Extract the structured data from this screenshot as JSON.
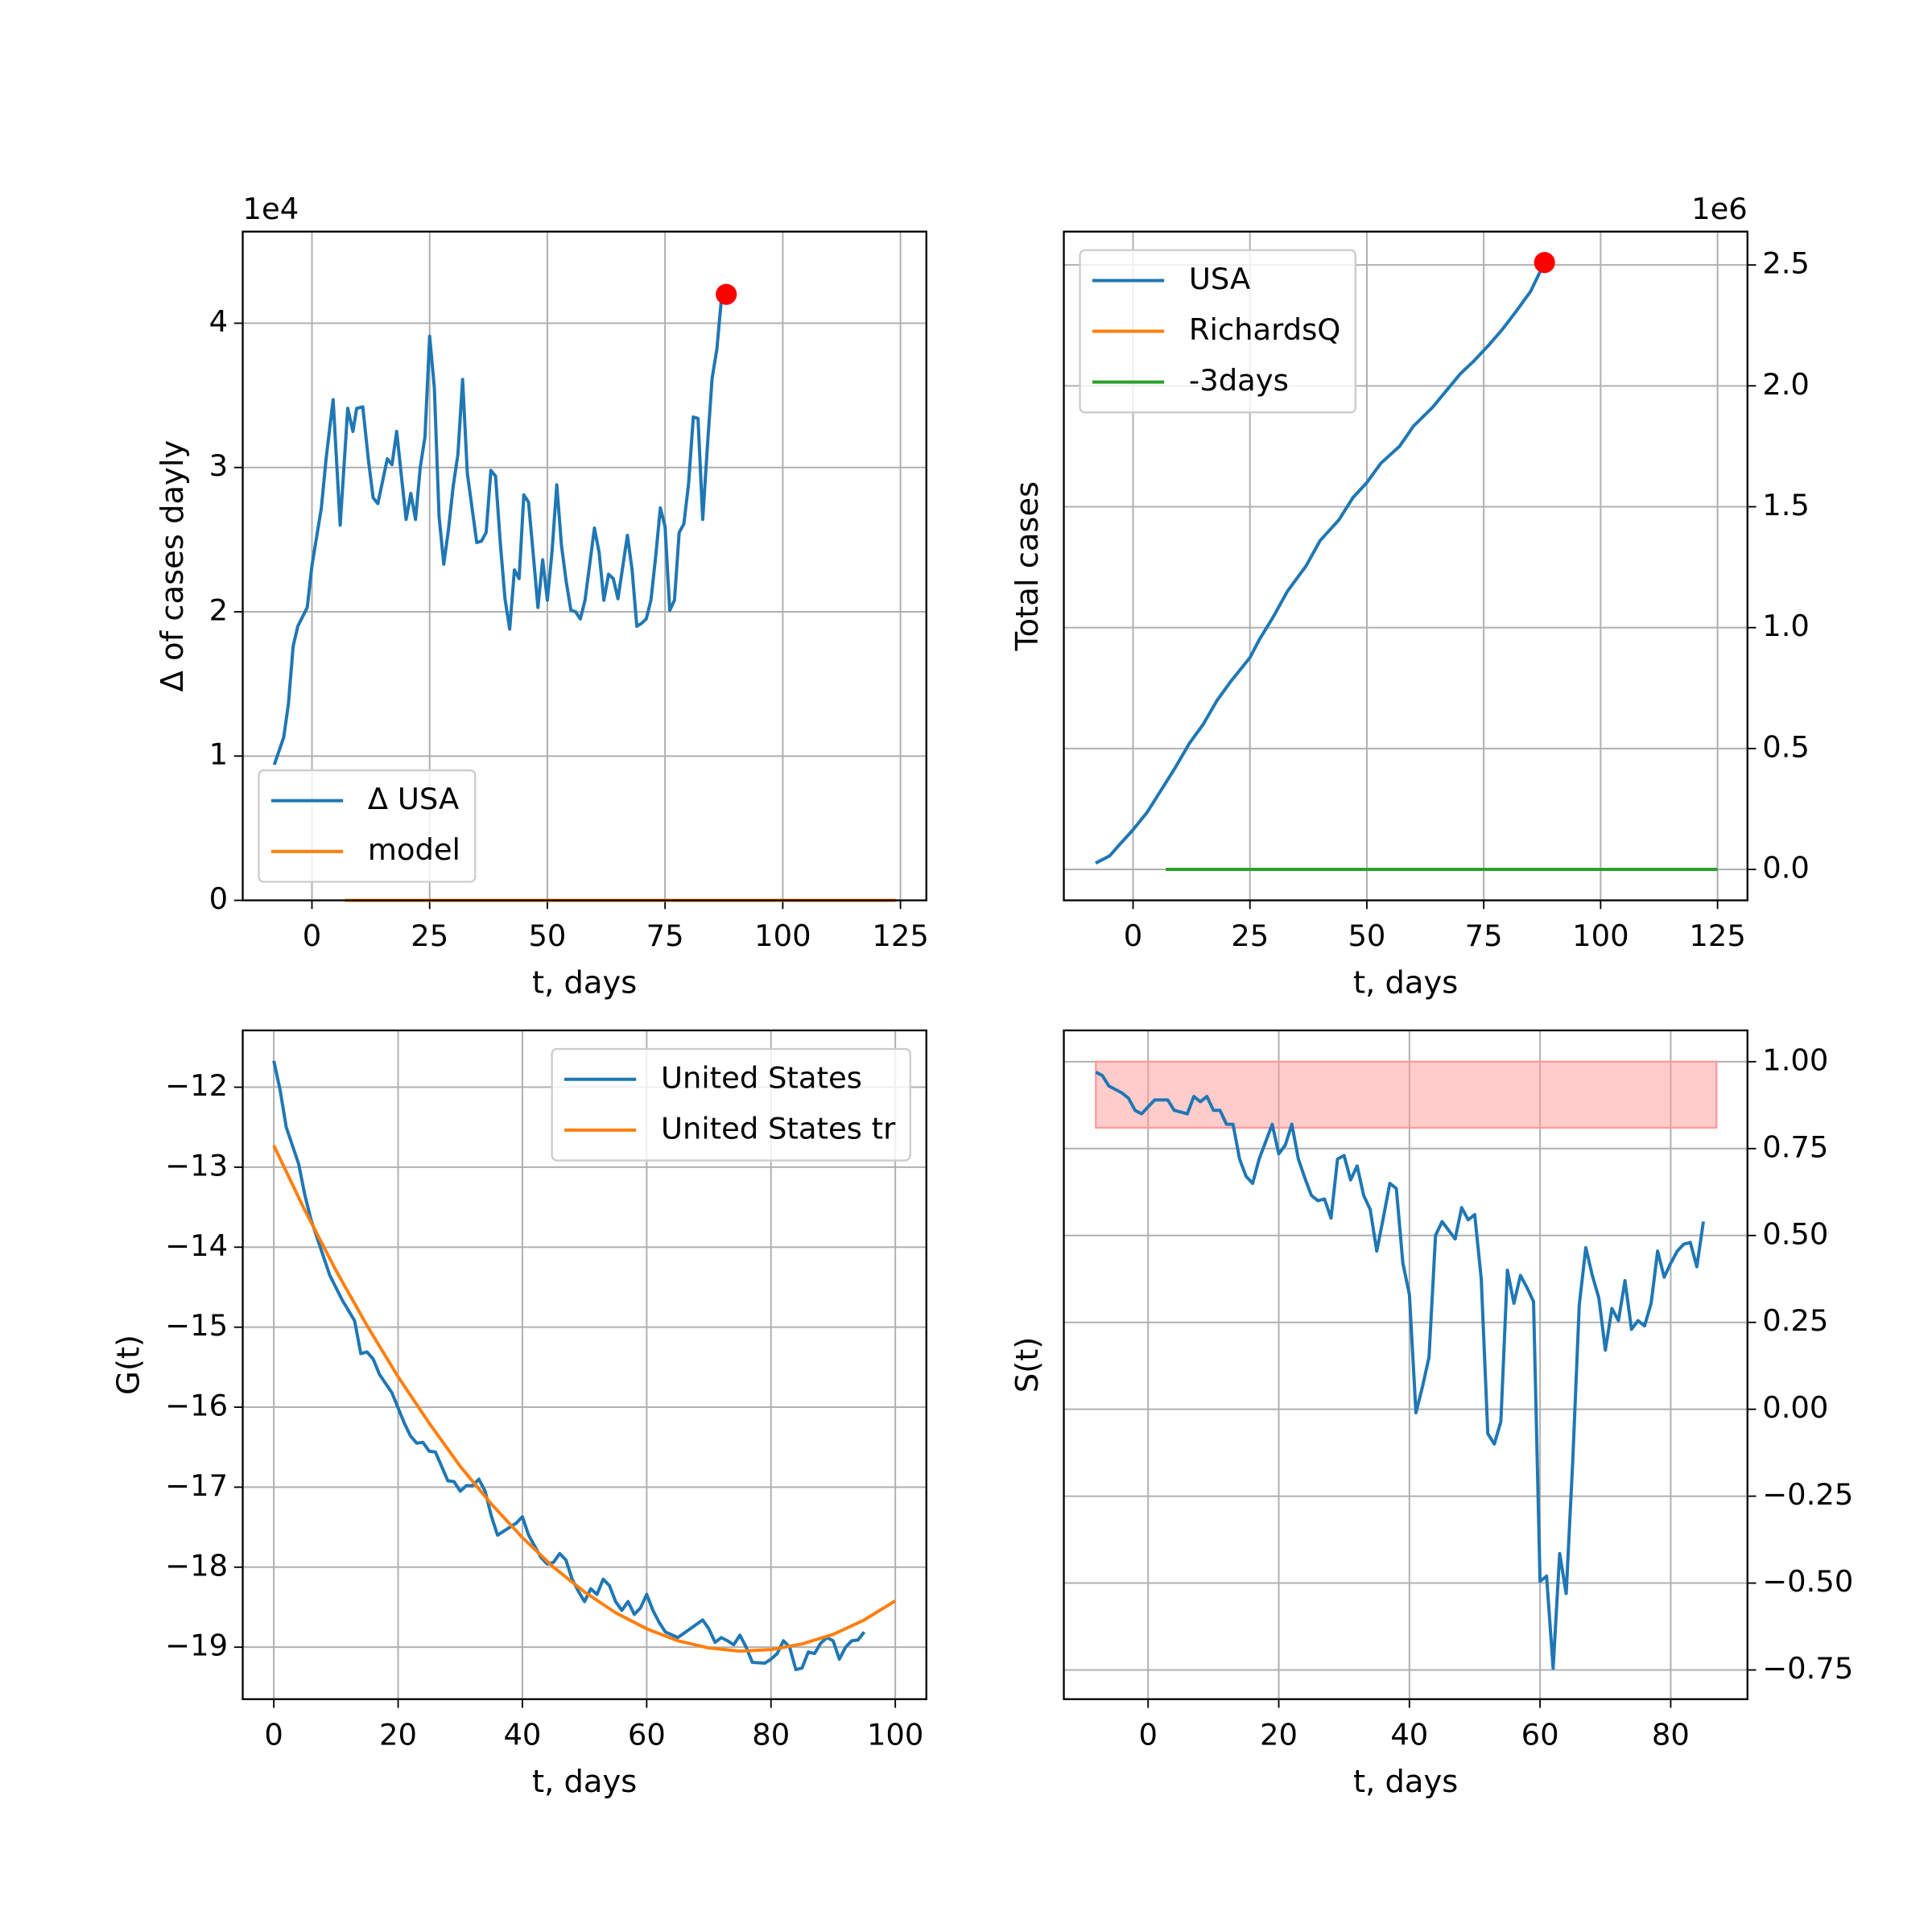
{
  "chart_data": [
    {
      "type": "line",
      "xlabel": "t, days",
      "ylabel": "Δ of cases dayly",
      "offset_text": "1e4",
      "xlim": [
        -14.7,
        130.5
      ],
      "ylim": [
        0,
        4.635
      ],
      "xticks": [
        0,
        25,
        50,
        75,
        100,
        125
      ],
      "yticks": [
        0,
        1,
        2,
        3,
        4
      ],
      "y_axis_side": "left",
      "grid": true,
      "legend": "lower left",
      "series": [
        {
          "name": "Δ USA",
          "color": "#1f77b4",
          "x": [
            -8,
            -6,
            -5,
            -4,
            -3,
            -1,
            0,
            2,
            3,
            4.5,
            6,
            7.6,
            8.7,
            9.5,
            10.8,
            12,
            13,
            14,
            16,
            17,
            18,
            19,
            20,
            21,
            22,
            23,
            24,
            25,
            26,
            27,
            28,
            29,
            30,
            31,
            32,
            33,
            34,
            35,
            36,
            37,
            38,
            39,
            40,
            41,
            42,
            43,
            44,
            45,
            46,
            47,
            48,
            49,
            50,
            51,
            52,
            53,
            54,
            55,
            56,
            57,
            58,
            59,
            60,
            61,
            62,
            63,
            64,
            65,
            66,
            67,
            68,
            69,
            70,
            71,
            72,
            73,
            74,
            75,
            76,
            77,
            78,
            79,
            80,
            81,
            82,
            83,
            84,
            85,
            86,
            87,
            88
          ],
          "values": [
            0.94,
            1.13,
            1.36,
            1.76,
            1.9,
            2.03,
            2.32,
            2.72,
            3.06,
            3.47,
            2.6,
            3.41,
            3.25,
            3.41,
            3.42,
            3.05,
            2.79,
            2.75,
            3.06,
            3.02,
            3.25,
            2.94,
            2.64,
            2.82,
            2.64,
            3.0,
            3.21,
            3.91,
            3.55,
            2.66,
            2.33,
            2.57,
            2.87,
            3.09,
            3.61,
            2.96,
            2.72,
            2.48,
            2.49,
            2.55,
            2.98,
            2.94,
            2.48,
            2.09,
            1.88,
            2.29,
            2.23,
            2.81,
            2.76,
            2.4,
            2.03,
            2.36,
            2.08,
            2.42,
            2.88,
            2.46,
            2.21,
            2.01,
            2.0,
            1.95,
            2.08,
            2.33,
            2.58,
            2.41,
            2.08,
            2.26,
            2.23,
            2.09,
            2.31,
            2.53,
            2.29,
            1.9,
            1.92,
            1.95,
            2.08,
            2.38,
            2.72,
            2.59,
            2.01,
            2.08,
            2.55,
            2.61,
            2.89,
            3.35,
            3.34,
            2.64,
            3.15,
            3.62,
            3.82,
            4.18,
            4.2
          ]
        },
        {
          "name": "model",
          "color": "#ff7f0e",
          "x": [
            7,
            124
          ],
          "values": [
            0,
            0
          ]
        }
      ],
      "highlight": {
        "x": 88,
        "y": 4.2,
        "color": "#ff0000"
      }
    },
    {
      "type": "line",
      "xlabel": "t, days",
      "ylabel": "Total cases",
      "offset_text": "1e6",
      "xlim": [
        -14.8,
        131.4
      ],
      "ylim": [
        -0.128,
        2.638
      ],
      "xticks": [
        0,
        25,
        50,
        75,
        100,
        125
      ],
      "yticks": [
        {
          "value": 0,
          "label": "0.0"
        },
        0.5,
        {
          "value": 1,
          "label": "1.0"
        },
        1.5,
        {
          "value": 2,
          "label": "2.0"
        },
        2.5
      ],
      "y_axis_side": "right",
      "grid": true,
      "legend": "upper left",
      "series": [
        {
          "name": "USA",
          "color": "#1f77b4",
          "x": [
            -8,
            -5,
            -3,
            0,
            3,
            6,
            9,
            12,
            15,
            18,
            21,
            25,
            27,
            30,
            33,
            37,
            40,
            44,
            47,
            50,
            53,
            57,
            60,
            64,
            67,
            70,
            73,
            76,
            79,
            82,
            85,
            88
          ],
          "values": [
            0.026,
            0.056,
            0.1,
            0.164,
            0.236,
            0.328,
            0.42,
            0.52,
            0.6,
            0.7,
            0.78,
            0.876,
            0.95,
            1.045,
            1.15,
            1.255,
            1.36,
            1.445,
            1.537,
            1.6,
            1.68,
            1.75,
            1.834,
            1.91,
            1.98,
            2.05,
            2.105,
            2.167,
            2.234,
            2.31,
            2.39,
            2.51
          ]
        },
        {
          "name": "RichardsQ",
          "color": "#ff7f0e",
          "x": [
            7,
            125
          ],
          "values": [
            0,
            0
          ]
        },
        {
          "name": "-3days",
          "color": "#2ca02c",
          "x": [
            7,
            125
          ],
          "values": [
            0,
            0
          ]
        }
      ],
      "highlight": {
        "x": 88,
        "y": 2.51,
        "color": "#ff0000"
      }
    },
    {
      "type": "line",
      "xlabel": "t, days",
      "ylabel": "G(t)",
      "xlim": [
        -5,
        105
      ],
      "ylim": [
        -19.65,
        -11.29
      ],
      "xticks": [
        0,
        20,
        40,
        60,
        80,
        100
      ],
      "yticks": [
        {
          "value": -12,
          "label": "−12"
        },
        {
          "value": -13,
          "label": "−13"
        },
        {
          "value": -14,
          "label": "−14"
        },
        {
          "value": -15,
          "label": "−15"
        },
        {
          "value": -16,
          "label": "−16"
        },
        {
          "value": -17,
          "label": "−17"
        },
        {
          "value": -18,
          "label": "−18"
        },
        {
          "value": -19,
          "label": "−19"
        }
      ],
      "y_axis_side": "left",
      "grid": true,
      "legend": "upper right",
      "series": [
        {
          "name": "United States",
          "color": "#1f77b4",
          "x": [
            0,
            1,
            2,
            3,
            4,
            5,
            6,
            7,
            9,
            11,
            13,
            14,
            15,
            16,
            17,
            19,
            21,
            22,
            23,
            24,
            25,
            26,
            28,
            29,
            30,
            31,
            32,
            33,
            34,
            35,
            36,
            37,
            38,
            39,
            40,
            41,
            43,
            44,
            45,
            46,
            47,
            48,
            49,
            50,
            51,
            52,
            53,
            54,
            55,
            56,
            57,
            58,
            59,
            60,
            61,
            62,
            63,
            65,
            67,
            69,
            70,
            71,
            72,
            73,
            74,
            75,
            76,
            77,
            79,
            80,
            81,
            82,
            83,
            84,
            85,
            86,
            87,
            88,
            89,
            90,
            91,
            92,
            93,
            94,
            95
          ],
          "values": [
            -11.67,
            -12.03,
            -12.5,
            -12.73,
            -12.96,
            -13.35,
            -13.66,
            -13.89,
            -14.35,
            -14.66,
            -14.92,
            -15.33,
            -15.31,
            -15.4,
            -15.59,
            -15.82,
            -16.2,
            -16.36,
            -16.45,
            -16.44,
            -16.55,
            -16.56,
            -16.92,
            -16.93,
            -17.05,
            -16.98,
            -16.98,
            -16.9,
            -17.05,
            -17.36,
            -17.6,
            -17.55,
            -17.5,
            -17.45,
            -17.37,
            -17.6,
            -17.88,
            -17.96,
            -17.94,
            -17.83,
            -17.91,
            -18.15,
            -18.3,
            -18.43,
            -18.27,
            -18.34,
            -18.15,
            -18.23,
            -18.43,
            -18.54,
            -18.43,
            -18.59,
            -18.51,
            -18.34,
            -18.54,
            -18.69,
            -18.81,
            -18.88,
            -18.77,
            -18.66,
            -18.77,
            -18.94,
            -18.88,
            -18.92,
            -18.97,
            -18.85,
            -19.0,
            -19.19,
            -19.2,
            -19.15,
            -19.08,
            -18.92,
            -19.0,
            -19.28,
            -19.26,
            -19.06,
            -19.08,
            -18.95,
            -18.88,
            -18.92,
            -19.15,
            -19.0,
            -18.92,
            -18.91,
            -18.81
          ]
        },
        {
          "name": "United States tr",
          "color": "#ff7f0e",
          "x": [
            0,
            5,
            10,
            15,
            20,
            25,
            30,
            35,
            40,
            45,
            50,
            55,
            60,
            65,
            70,
            75,
            80,
            85,
            90,
            95,
            100
          ],
          "values": [
            -12.73,
            -13.54,
            -14.29,
            -14.98,
            -15.62,
            -16.2,
            -16.74,
            -17.21,
            -17.63,
            -18.0,
            -18.31,
            -18.57,
            -18.77,
            -18.92,
            -19.01,
            -19.05,
            -19.03,
            -18.96,
            -18.84,
            -18.66,
            -18.42
          ]
        }
      ]
    },
    {
      "type": "line",
      "xlabel": "t, days",
      "ylabel": "S(t)",
      "xlim": [
        -12.9,
        91.75
      ],
      "ylim": [
        -0.834,
        1.09
      ],
      "xticks": [
        0,
        20,
        40,
        60,
        80
      ],
      "yticks": [
        {
          "value": 1,
          "label": "1.00"
        },
        {
          "value": 0.75,
          "label": "0.75"
        },
        {
          "value": 0.5,
          "label": "0.50"
        },
        {
          "value": 0.25,
          "label": "0.25"
        },
        {
          "value": 0,
          "label": "0.00"
        },
        {
          "value": -0.25,
          "label": "−0.25"
        },
        {
          "value": -0.5,
          "label": "−0.50"
        },
        {
          "value": -0.75,
          "label": "−0.75"
        }
      ],
      "y_axis_side": "right",
      "grid": true,
      "band": {
        "x_range": [
          -8,
          87
        ],
        "y_range": [
          0.81,
          1.0
        ],
        "color": "#ff9999"
      },
      "series": [
        {
          "color": "#1f77b4",
          "x": [
            -8,
            -7,
            -6,
            -5,
            -4,
            -3,
            -2,
            -1,
            0,
            1,
            2,
            3,
            4,
            5,
            6,
            7,
            8,
            9,
            10,
            11,
            12,
            13,
            14,
            15,
            16,
            17,
            18,
            19,
            20,
            21,
            22,
            23,
            24,
            25,
            26,
            27,
            28,
            29,
            30,
            31,
            32,
            33,
            34,
            35,
            36,
            37,
            38,
            39,
            40,
            41,
            42,
            43,
            44,
            45,
            46,
            47,
            48,
            49,
            50,
            51,
            52,
            53,
            54,
            55,
            56,
            57,
            58,
            59,
            60,
            61,
            62,
            63,
            64,
            65,
            66,
            67,
            68,
            69,
            70,
            71,
            72,
            73,
            74,
            75,
            76,
            77,
            78,
            79,
            80,
            81,
            82,
            83,
            84,
            85
          ],
          "values": [
            0.97,
            0.96,
            0.93,
            0.92,
            0.91,
            0.895,
            0.86,
            0.85,
            0.87,
            0.89,
            0.89,
            0.89,
            0.86,
            0.855,
            0.85,
            0.9,
            0.885,
            0.9,
            0.86,
            0.86,
            0.82,
            0.82,
            0.72,
            0.67,
            0.65,
            0.72,
            0.77,
            0.82,
            0.735,
            0.76,
            0.82,
            0.72,
            0.665,
            0.615,
            0.6,
            0.605,
            0.55,
            0.72,
            0.73,
            0.66,
            0.7,
            0.615,
            0.575,
            0.455,
            0.55,
            0.65,
            0.635,
            0.42,
            0.33,
            -0.01,
            0.065,
            0.15,
            0.5,
            0.54,
            0.515,
            0.49,
            0.58,
            0.545,
            0.56,
            0.375,
            -0.07,
            -0.1,
            -0.035,
            0.4,
            0.305,
            0.385,
            0.35,
            0.31,
            -0.495,
            -0.48,
            -0.745,
            -0.415,
            -0.53,
            -0.15,
            0.3,
            0.465,
            0.385,
            0.32,
            0.17,
            0.29,
            0.255,
            0.37,
            0.23,
            0.255,
            0.24,
            0.305,
            0.455,
            0.38,
            0.42,
            0.455,
            0.475,
            0.48,
            0.41,
            0.54
          ]
        }
      ]
    }
  ]
}
